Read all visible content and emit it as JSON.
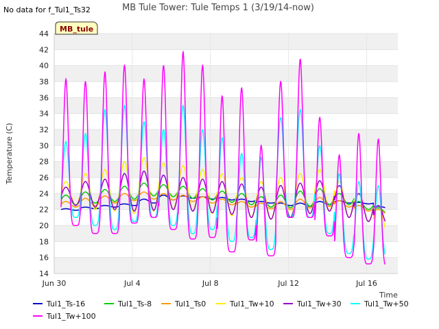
{
  "nodata_note": "No data for f_Tul1_Ts32",
  "badge": "MB_tule",
  "chart_data": {
    "type": "line",
    "title": "MB Tule Tower: Tule Temps 1 (3/19/14-now)",
    "xlabel": "Time",
    "ylabel": "Temperature (C)",
    "xlim": [
      0,
      17.6
    ],
    "ylim": [
      14,
      44
    ],
    "yticks": [
      14,
      16,
      18,
      20,
      22,
      24,
      26,
      28,
      30,
      32,
      34,
      36,
      38,
      40,
      42,
      44
    ],
    "xticks": [
      {
        "x": 0,
        "label": "Jun 30"
      },
      {
        "x": 4,
        "label": "Jul 4"
      },
      {
        "x": 8,
        "label": "Jul 8"
      },
      {
        "x": 12,
        "label": "Jul 12"
      },
      {
        "x": 16,
        "label": "Jul 16"
      }
    ],
    "grid": "horizontal bands",
    "legend_position": "bottom",
    "x_units": "days since Jun 30",
    "days": 17,
    "series": [
      {
        "name": "Tul1_Ts-16",
        "color": "#0000cc",
        "min": [
          21.9,
          22.1,
          22.3,
          22.5,
          22.8,
          23.2,
          23.4,
          23.3,
          23.2,
          23.0,
          22.8,
          22.5,
          22.4,
          22.6,
          22.8,
          22.7,
          22.2
        ],
        "max": [
          22.1,
          22.3,
          22.5,
          22.7,
          23.3,
          23.8,
          23.7,
          23.6,
          23.5,
          23.3,
          23.0,
          22.8,
          22.8,
          23.0,
          23.1,
          22.9,
          22.4
        ]
      },
      {
        "name": "Tul1_Ts-8",
        "color": "#00cc00",
        "min": [
          22.6,
          22.8,
          23.0,
          23.3,
          23.7,
          23.6,
          23.4,
          23.2,
          22.9,
          22.6,
          22.3,
          22.2,
          22.4,
          22.6,
          22.6,
          22.0,
          21.5
        ],
        "max": [
          23.8,
          24.2,
          24.5,
          24.9,
          25.3,
          25.1,
          24.9,
          24.6,
          24.3,
          24.0,
          23.6,
          23.8,
          24.3,
          24.6,
          24.0,
          23.0,
          22.2
        ]
      },
      {
        "name": "Tul1_Ts0",
        "color": "#ff9900",
        "min": [
          22.3,
          22.5,
          22.8,
          23.1,
          23.3,
          23.2,
          23.0,
          22.8,
          22.6,
          22.3,
          22.1,
          22.0,
          22.2,
          22.4,
          22.3,
          21.8,
          21.4
        ],
        "max": [
          23.0,
          23.4,
          23.7,
          24.0,
          24.2,
          24.0,
          23.8,
          23.6,
          23.3,
          23.0,
          22.8,
          23.0,
          23.3,
          23.5,
          23.1,
          22.5,
          22.0
        ]
      },
      {
        "name": "Tul1_Tw+10",
        "color": "#ffee00",
        "min": [
          22.5,
          22.0,
          21.8,
          21.5,
          21.8,
          22.0,
          21.8,
          21.5,
          21.2,
          21.0,
          20.8,
          21.0,
          21.5,
          21.8,
          21.0,
          20.5,
          19.0
        ],
        "max": [
          25.5,
          26.5,
          27.0,
          28.0,
          28.5,
          27.8,
          27.5,
          27.0,
          26.5,
          26.0,
          25.5,
          26.0,
          26.5,
          27.0,
          25.5,
          24.0,
          22.5
        ]
      },
      {
        "name": "Tul1_Tw+30",
        "color": "#9900cc",
        "min": [
          22.5,
          22.3,
          22.0,
          21.8,
          21.9,
          22.0,
          21.8,
          21.6,
          21.4,
          21.0,
          20.8,
          21.0,
          21.5,
          21.8,
          21.0,
          20.5,
          20.0
        ],
        "max": [
          24.8,
          25.5,
          25.8,
          26.5,
          26.8,
          26.3,
          26.0,
          25.8,
          25.5,
          25.2,
          24.8,
          25.0,
          25.3,
          25.6,
          25.0,
          24.0,
          22.5
        ]
      },
      {
        "name": "Tul1_Tw+50",
        "color": "#00ffff",
        "min": [
          21.0,
          20.0,
          19.5,
          20.5,
          21.0,
          20.0,
          19.0,
          19.5,
          18.0,
          18.5,
          17.0,
          21.0,
          21.0,
          19.0,
          16.5,
          15.8,
          16.0
        ],
        "max": [
          30.5,
          31.5,
          34.5,
          35.0,
          33.0,
          32.0,
          35.0,
          32.0,
          31.0,
          29.0,
          28.5,
          33.5,
          34.5,
          30.0,
          26.5,
          25.5,
          25.0
        ]
      },
      {
        "name": "Tul1_Tw+100",
        "color": "#ff00ff",
        "min": [
          20.0,
          19.0,
          19.0,
          20.3,
          21.0,
          19.5,
          18.3,
          18.5,
          16.7,
          18.2,
          16.2,
          21.0,
          21.0,
          18.7,
          16.0,
          15.2,
          15.0
        ],
        "max": [
          38.3,
          38.0,
          39.2,
          40.0,
          38.3,
          40.0,
          41.7,
          40.0,
          36.2,
          37.2,
          30.0,
          38.0,
          40.8,
          33.5,
          28.8,
          31.5,
          30.8
        ]
      }
    ]
  }
}
